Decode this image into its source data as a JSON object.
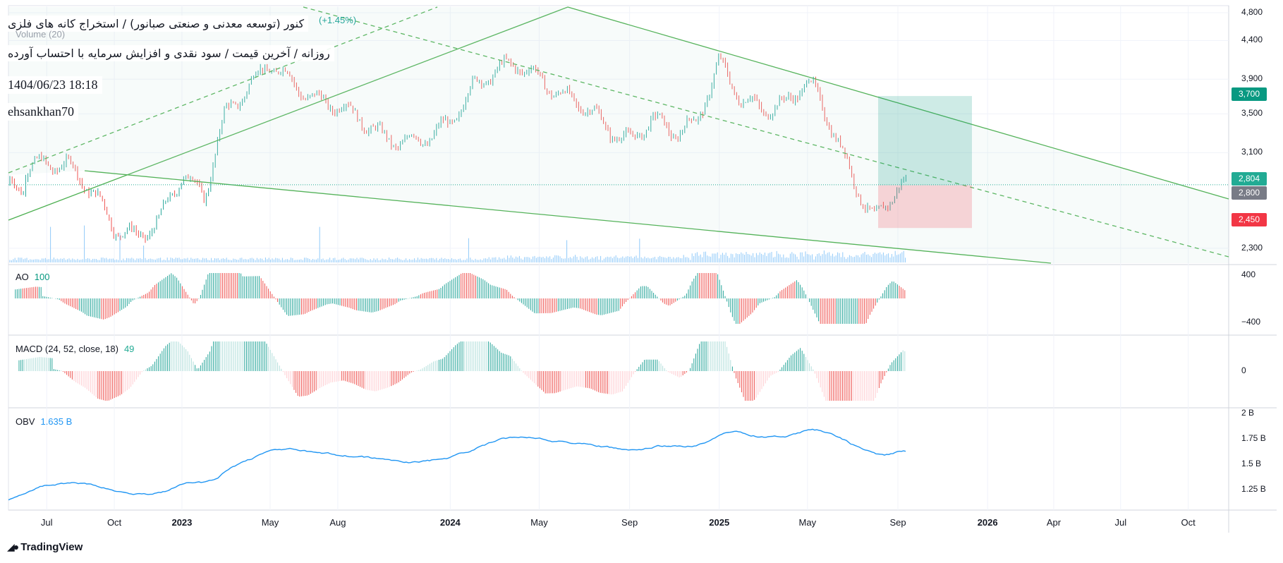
{
  "header": {
    "title_line1": "كنور (توسعه معدنی و صنعتی صبانور) / استخراج كانه های فلزی",
    "title_line2": "روزانه / آخرین قیمت / سود نقدی و افزایش سرمایه با احتساب آورده",
    "datetime": "1404/06/23 18:18",
    "author": "ehsankhan70",
    "pct_change": "(+1.45%)",
    "volume_label": "Volume (20)"
  },
  "price_tags": {
    "target": "3,700",
    "last": "2,804",
    "entry": "2,800",
    "stop": "2,450"
  },
  "colors": {
    "up": "#26a69a",
    "down": "#ef5350",
    "candle_up": "#26a69a",
    "candle_down": "#ef5350",
    "channel": "#4caf50",
    "target_tag": "#089981",
    "last_tag": "#22ab94",
    "entry_tag": "#787b86",
    "stop_tag": "#f23645",
    "obv": "#2196f3",
    "volume": "#90caf9"
  },
  "indicators": {
    "ao": {
      "name": "AO",
      "value": "100"
    },
    "macd": {
      "name": "MACD (24, 52, close, 18)",
      "value": "49"
    },
    "obv": {
      "name": "OBV",
      "value": "1.635 B"
    }
  },
  "y_axis": {
    "price_ticks": [
      "4,800",
      "4,400",
      "3,900",
      "3,500",
      "3,100",
      "2,300"
    ],
    "ao_ticks": [
      "400",
      "−400"
    ],
    "macd_ticks": [
      "0"
    ],
    "obv_ticks": [
      "2 B",
      "1.75 B",
      "1.5 B",
      "1.25 B"
    ]
  },
  "x_axis": {
    "ticks": [
      {
        "label": "Jul",
        "bold": false
      },
      {
        "label": "Oct",
        "bold": false
      },
      {
        "label": "2023",
        "bold": true
      },
      {
        "label": "May",
        "bold": false
      },
      {
        "label": "Aug",
        "bold": false
      },
      {
        "label": "2024",
        "bold": true
      },
      {
        "label": "May",
        "bold": false
      },
      {
        "label": "Sep",
        "bold": false
      },
      {
        "label": "2025",
        "bold": true
      },
      {
        "label": "May",
        "bold": false
      },
      {
        "label": "Sep",
        "bold": false
      },
      {
        "label": "2026",
        "bold": true
      },
      {
        "label": "Apr",
        "bold": false
      },
      {
        "label": "Jul",
        "bold": false
      },
      {
        "label": "Oct",
        "bold": false
      }
    ]
  },
  "branding": {
    "logo_text": "TradingView"
  },
  "chart_data": {
    "type": "line",
    "scale": "log",
    "series": [
      {
        "x": [
          "2022-06-01",
          "2022-07-01",
          "2022-08-01",
          "2022-09-01",
          "2022-10-01",
          "2022-11-01",
          "2022-12-01",
          "2023-01-01",
          "2023-02-01",
          "2023-03-01",
          "2023-04-01",
          "2023-05-01",
          "2023-06-01",
          "2023-07-01",
          "2023-08-01",
          "2023-09-01",
          "2023-10-01",
          "2023-11-01",
          "2023-12-01",
          "2024-01-01",
          "2024-02-01",
          "2024-03-01",
          "2024-04-01",
          "2024-05-01",
          "2024-06-01",
          "2024-07-01",
          "2024-08-01",
          "2024-09-01",
          "2024-10-01",
          "2024-11-01",
          "2024-12-01",
          "2025-01-01",
          "2025-02-01",
          "2025-03-01",
          "2025-04-01",
          "2025-05-01",
          "2025-06-01",
          "2025-07-01",
          "2025-08-01",
          "2025-09-01"
        ],
        "values": [
          2950,
          3000,
          2970,
          2750,
          2450,
          2380,
          2500,
          2900,
          2700,
          3500,
          3800,
          4100,
          3850,
          3650,
          3600,
          3450,
          3250,
          3200,
          3250,
          3400,
          3800,
          4000,
          4100,
          3900,
          3700,
          3600,
          3350,
          3200,
          3450,
          3300,
          3400,
          4100,
          3650,
          3550,
          3600,
          3900,
          3400,
          2850,
          2500,
          2800
        ]
      }
    ],
    "ylim": [
      2200,
      4800
    ],
    "annotations": {
      "target": 3700,
      "entry": 2800,
      "stop": 2450,
      "last": 2804
    }
  }
}
